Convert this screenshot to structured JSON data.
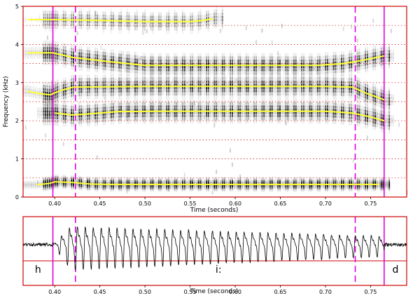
{
  "chart_data": [
    {
      "type": "spectrogram",
      "ylabel": "Frequency (kHz)",
      "xlabel": "Time (seconds)",
      "x_range": [
        0.365,
        0.79
      ],
      "y_range": [
        0,
        5
      ],
      "y_ticks": [
        0,
        1,
        2,
        3,
        4,
        5
      ],
      "x_ticks": [
        0.4,
        0.45,
        0.5,
        0.55,
        0.6,
        0.65,
        0.7,
        0.75
      ],
      "x_tick_labels": [
        "0.40",
        "0.45",
        "0.50",
        "0.55",
        "0.60",
        "0.65",
        "0.70",
        "0.75"
      ],
      "grid": "dotted red horizontal at 0.5 kHz steps",
      "formant_color": "#ffff33",
      "marker_color": "#e000e0",
      "formants": [
        {
          "name": "F1",
          "points": [
            [
              0.38,
              0.32
            ],
            [
              0.395,
              0.36
            ],
            [
              0.4,
              0.4
            ],
            [
              0.42,
              0.38
            ],
            [
              0.44,
              0.34
            ],
            [
              0.46,
              0.33
            ],
            [
              0.5,
              0.33
            ],
            [
              0.6,
              0.33
            ],
            [
              0.7,
              0.33
            ],
            [
              0.76,
              0.33
            ]
          ]
        },
        {
          "name": "F2",
          "points": [
            [
              0.4,
              2.2
            ],
            [
              0.42,
              2.15
            ],
            [
              0.45,
              2.2
            ],
            [
              0.47,
              2.24
            ],
            [
              0.52,
              2.25
            ],
            [
              0.6,
              2.25
            ],
            [
              0.7,
              2.25
            ],
            [
              0.73,
              2.2
            ],
            [
              0.75,
              2.1
            ],
            [
              0.765,
              2.0
            ]
          ]
        },
        {
          "name": "F3",
          "points": [
            [
              0.37,
              2.78
            ],
            [
              0.38,
              2.72
            ],
            [
              0.395,
              2.68
            ],
            [
              0.405,
              2.78
            ],
            [
              0.42,
              2.88
            ],
            [
              0.5,
              2.9
            ],
            [
              0.6,
              2.9
            ],
            [
              0.7,
              2.9
            ],
            [
              0.73,
              2.88
            ],
            [
              0.745,
              2.72
            ],
            [
              0.765,
              2.55
            ]
          ]
        },
        {
          "name": "F4",
          "points": [
            [
              0.37,
              3.78
            ],
            [
              0.385,
              3.78
            ],
            [
              0.398,
              3.78
            ],
            [
              0.42,
              3.66
            ],
            [
              0.46,
              3.55
            ],
            [
              0.5,
              3.45
            ],
            [
              0.6,
              3.45
            ],
            [
              0.69,
              3.45
            ],
            [
              0.72,
              3.5
            ],
            [
              0.74,
              3.58
            ],
            [
              0.765,
              3.7
            ]
          ]
        },
        {
          "name": "F5",
          "points": [
            [
              0.37,
              4.65
            ],
            [
              0.4,
              4.65
            ],
            [
              0.45,
              4.63
            ],
            [
              0.5,
              4.6
            ],
            [
              0.55,
              4.6
            ],
            [
              0.565,
              4.63
            ],
            [
              0.575,
              4.68
            ]
          ]
        }
      ],
      "markers": [
        {
          "t": 0.398,
          "style": "solid"
        },
        {
          "t": 0.423,
          "style": "dashed"
        },
        {
          "t": 0.733,
          "style": "dashed"
        },
        {
          "t": 0.765,
          "style": "solid"
        }
      ]
    },
    {
      "type": "waveform",
      "xlabel": "Time (seconds)",
      "x_range": [
        0.365,
        0.79
      ],
      "x_ticks": [
        0.4,
        0.45,
        0.5,
        0.55,
        0.6,
        0.65,
        0.7,
        0.75
      ],
      "x_tick_labels": [
        "0.40",
        "0.45",
        "0.50",
        "0.55",
        "0.60",
        "0.65",
        "0.70",
        "0.75"
      ],
      "voicing_start": 0.398,
      "voicing_end": 0.765,
      "cycle_seconds": 0.0088,
      "segments": [
        {
          "label": "h",
          "start": 0.365,
          "end": 0.398
        },
        {
          "label": "i:",
          "start": 0.398,
          "end": 0.765
        },
        {
          "label": "d",
          "start": 0.765,
          "end": 0.79
        }
      ]
    }
  ]
}
